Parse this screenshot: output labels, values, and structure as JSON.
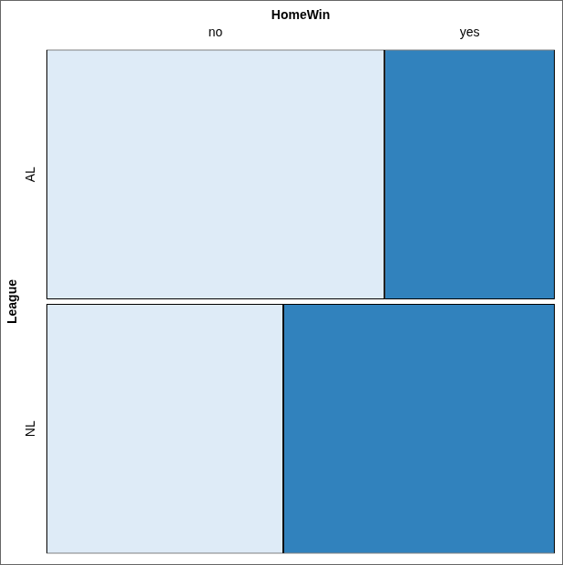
{
  "chart_data": {
    "type": "mosaic",
    "x_label": "HomeWin",
    "y_label": "League",
    "categories": [
      "AL",
      "NL"
    ],
    "series": [
      {
        "name": "no",
        "color": "#deebf7",
        "values": [
          0.665,
          0.466
        ]
      },
      {
        "name": "yes",
        "color": "#3182bd",
        "values": [
          0.335,
          0.534
        ]
      }
    ],
    "xlim": [
      0,
      1
    ],
    "stacked": true,
    "orientation": "horizontal",
    "tick_labels": "y"
  }
}
